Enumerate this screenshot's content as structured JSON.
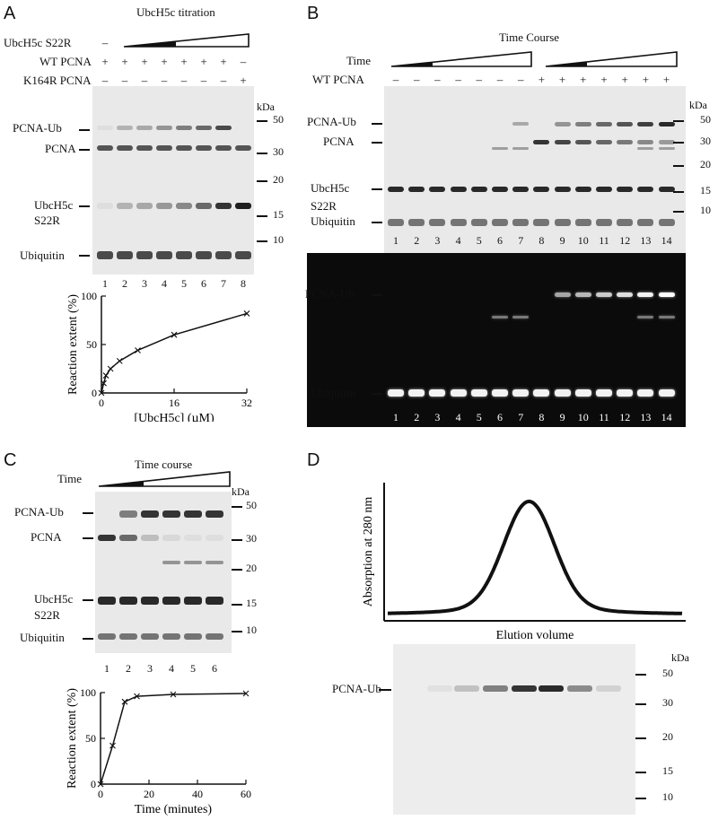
{
  "panels": {
    "A": {
      "letter": "A",
      "titration_label": "UbcH5c titration",
      "row_labels": [
        "UbcH5c S22R",
        "WT PCNA",
        "K164R PCNA"
      ],
      "row_signs": [
        [
          "–",
          "",
          "",
          "",
          "",
          "",
          "",
          ""
        ],
        [
          "+",
          "+",
          "+",
          "+",
          "+",
          "+",
          "+",
          "–"
        ],
        [
          "–",
          "–",
          "–",
          "–",
          "–",
          "–",
          "–",
          "+"
        ]
      ],
      "band_labels": [
        "PCNA-Ub",
        "PCNA",
        "UbcH5c",
        "S22R",
        "Ubiquitin"
      ],
      "kda": "kDa",
      "markers": [
        "50",
        "30",
        "20",
        "15",
        "10"
      ],
      "lanes": [
        "1",
        "2",
        "3",
        "4",
        "5",
        "6",
        "7",
        "8"
      ],
      "ylabel": "Reaction extent (%)",
      "xlabel": "[UbcH5c] (µM)"
    },
    "B": {
      "letter": "B",
      "title": "Time Course",
      "row_labels": [
        "Time",
        "WT PCNA"
      ],
      "row_signs": [
        "–",
        "–",
        "–",
        "–",
        "–",
        "–",
        "–",
        "+",
        "+",
        "+",
        "+",
        "+",
        "+",
        "+"
      ],
      "band_labels": [
        "PCNA-Ub",
        "PCNA",
        "UbcH5c",
        "S22R",
        "Ubiquitin"
      ],
      "fluor_labels": [
        "PCNA-Ub",
        "Ubiquitin"
      ],
      "kda": "kDa",
      "markers": [
        "50",
        "30",
        "20",
        "15",
        "10"
      ],
      "lanes": [
        "1",
        "2",
        "3",
        "4",
        "5",
        "6",
        "7",
        "8",
        "9",
        "10",
        "11",
        "12",
        "13",
        "14"
      ]
    },
    "C": {
      "letter": "C",
      "time_label": "Time",
      "title": "Time course",
      "band_labels": [
        "PCNA-Ub",
        "PCNA",
        "UbcH5c",
        "S22R",
        "Ubiquitin"
      ],
      "kda": "kDa",
      "markers": [
        "50",
        "30",
        "20",
        "15",
        "10"
      ],
      "lanes": [
        "1",
        "2",
        "3",
        "4",
        "5",
        "6"
      ],
      "ylabel": "Reaction extent (%)",
      "xlabel": "Time (minutes)"
    },
    "D": {
      "letter": "D",
      "ylabel": "Absorption at 280 nm",
      "xlabel": "Elution volume",
      "band_label": "PCNA-Ub",
      "kda": "kDa",
      "markers": [
        "50",
        "30",
        "20",
        "15",
        "10"
      ]
    }
  },
  "chart_data": [
    {
      "type": "line",
      "x": [
        0,
        0.5,
        1,
        2,
        4,
        8,
        16,
        32
      ],
      "values": [
        0,
        10,
        18,
        25,
        33,
        44,
        60,
        82
      ],
      "xticks": [
        "0",
        "16",
        "32"
      ],
      "yticks": [
        "0",
        "50",
        "100"
      ],
      "xlim": [
        0,
        32
      ],
      "ylim": [
        0,
        100
      ],
      "xlabel": "[UbcH5c] (µM)",
      "ylabel": "Reaction extent (%)"
    },
    {
      "type": "line",
      "x": [
        0,
        5,
        10,
        15,
        30,
        60
      ],
      "values": [
        0,
        42,
        90,
        96,
        98,
        99
      ],
      "xticks": [
        "0",
        "20",
        "40",
        "60"
      ],
      "yticks": [
        "0",
        "50",
        "100"
      ],
      "xlim": [
        0,
        60
      ],
      "ylim": [
        0,
        100
      ],
      "xlabel": "Time (minutes)",
      "ylabel": "Reaction extent (%)"
    },
    {
      "type": "line",
      "curve": "gaussian-peak",
      "xlabel": "Elution volume",
      "ylabel": "Absorption at 280 nm"
    }
  ]
}
